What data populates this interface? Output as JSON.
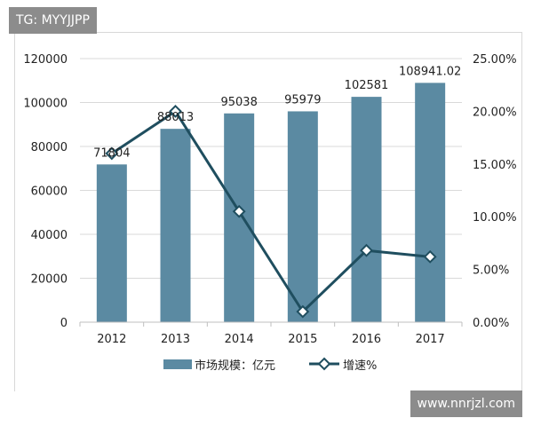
{
  "watermarks": {
    "top_left": "TG: MYYJJPP",
    "bottom_right": "www.nnrjzl.com"
  },
  "chart_data": {
    "type": "bar",
    "categories": [
      "2012",
      "2013",
      "2014",
      "2015",
      "2016",
      "2017"
    ],
    "series": [
      {
        "name": "市场规模：亿元",
        "type": "bar",
        "axis": "left",
        "color": "#5b8aa2",
        "values": [
          71804,
          88013,
          95038,
          95979,
          102581,
          108941.02
        ],
        "labels": [
          "71804",
          "88013",
          "95038",
          "95979",
          "102581",
          "108941.02"
        ]
      },
      {
        "name": "增速%",
        "type": "line",
        "axis": "right",
        "color": "#1f4e5f",
        "marker": "diamond",
        "values": [
          16.0,
          20.0,
          10.5,
          1.0,
          6.8,
          6.2
        ]
      }
    ],
    "y_left": {
      "ticks": [
        "0",
        "20000",
        "40000",
        "60000",
        "80000",
        "100000",
        "120000"
      ],
      "ylim": [
        0,
        120000
      ]
    },
    "y_right": {
      "ticks": [
        "0.00%",
        "5.00%",
        "10.00%",
        "15.00%",
        "20.00%",
        "25.00%"
      ],
      "ylim": [
        0,
        25
      ]
    },
    "grid": true,
    "legend": "bottom"
  }
}
